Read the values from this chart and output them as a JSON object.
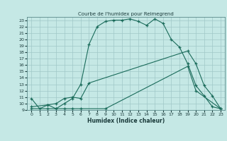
{
  "title": "Courbe de l'humidex pour Reimegrend",
  "xlabel": "Humidex (Indice chaleur)",
  "bg_color": "#c5e8e5",
  "grid_color": "#a0c8c8",
  "line_color": "#1a6b5a",
  "xlim": [
    -0.5,
    23.5
  ],
  "ylim": [
    9,
    23.5
  ],
  "xticks": [
    0,
    1,
    2,
    3,
    4,
    5,
    6,
    7,
    8,
    9,
    10,
    11,
    12,
    13,
    14,
    15,
    16,
    17,
    18,
    19,
    20,
    21,
    22,
    23
  ],
  "yticks": [
    9,
    10,
    11,
    12,
    13,
    14,
    15,
    16,
    17,
    18,
    19,
    20,
    21,
    22,
    23
  ],
  "curve1_x": [
    0,
    1,
    2,
    3,
    4,
    5,
    6,
    7,
    8,
    9,
    10,
    11,
    12,
    13,
    14,
    15,
    16,
    17,
    18,
    19,
    20,
    21,
    22,
    23
  ],
  "curve1_y": [
    10.8,
    9.2,
    9.8,
    9.2,
    10.0,
    10.8,
    13.0,
    19.2,
    22.0,
    22.8,
    23.0,
    23.0,
    23.2,
    22.8,
    22.2,
    23.2,
    22.5,
    20.0,
    18.8,
    16.2,
    12.8,
    11.2,
    9.5,
    9.2
  ],
  "curve2_x": [
    0,
    2,
    3,
    4,
    5,
    6,
    7,
    19,
    20,
    21,
    22,
    23
  ],
  "curve2_y": [
    9.5,
    9.8,
    10.0,
    10.8,
    11.0,
    10.8,
    13.2,
    18.2,
    16.2,
    12.8,
    11.2,
    9.2
  ],
  "curve3_x": [
    0,
    2,
    3,
    4,
    5,
    6,
    9,
    19,
    20,
    23
  ],
  "curve3_y": [
    9.2,
    9.2,
    9.2,
    9.2,
    9.2,
    9.2,
    9.2,
    15.8,
    12.0,
    9.2
  ]
}
